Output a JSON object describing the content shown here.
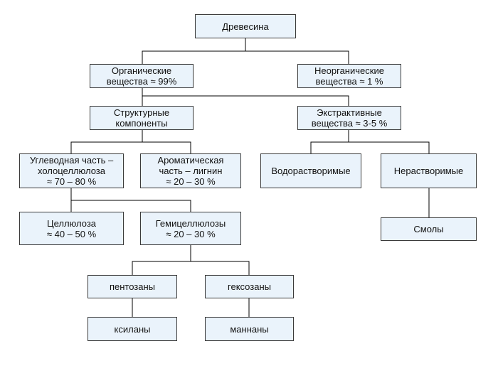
{
  "diagram": {
    "colors": {
      "box_fill": "#eaf3fb",
      "box_border": "#3a3a3a",
      "line": "#000000"
    },
    "nodes": {
      "wood": "Древесина",
      "organic": "Органические\nвещества ≈ 99%",
      "inorganic": "Неорганические\nвещества ≈ 1 %",
      "structural": "Структурные\nкомпоненты",
      "extractive": "Экстрактивные\nвещества ≈ 3-5 %",
      "carbohydrate": "Углеводная часть –\nхолоцеллюлоза\n≈ 70 – 80 %",
      "aromatic": "Ароматическая\nчасть – лигнин\n≈ 20 – 30 %",
      "water_soluble": "Водорастворимые",
      "insoluble": "Нерастворимые",
      "cellulose": "Целлюлоза\n≈ 40 – 50 %",
      "hemicellulose": "Гемицеллюлозы\n≈ 20 – 30 %",
      "resins": "Смолы",
      "pentosans": "пентозаны",
      "hexosans": "гексозаны",
      "xylans": "ксиланы",
      "mannans": "маннаны"
    }
  }
}
